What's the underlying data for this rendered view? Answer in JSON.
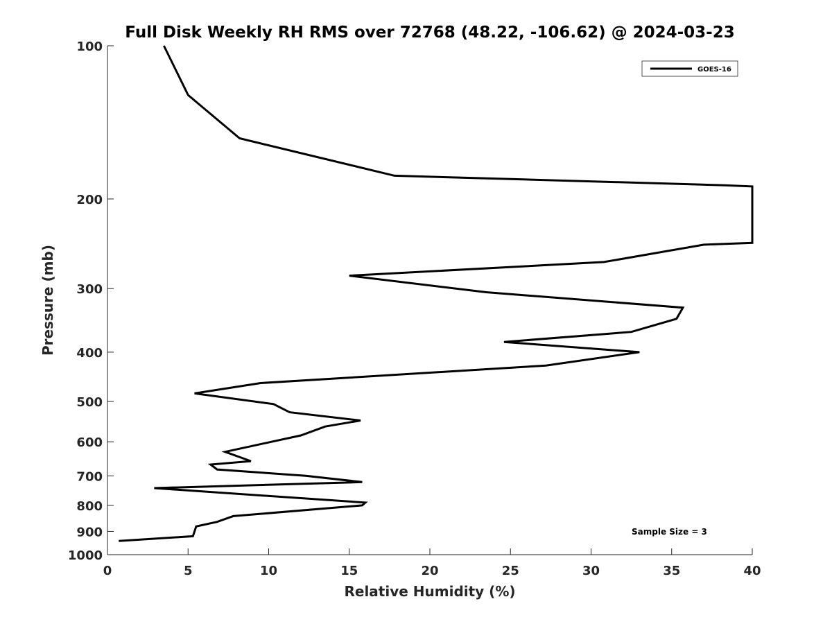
{
  "chart_data": {
    "type": "line",
    "title": "Full Disk Weekly RH RMS over 72768 (48.22, -106.62) @ 2024-03-23",
    "xlabel": "Relative Humidity (%)",
    "ylabel": "Pressure (mb)",
    "xlim": [
      0,
      40
    ],
    "ylim": [
      100,
      1000
    ],
    "y_scale": "log",
    "y_reversed": true,
    "xticks": [
      0,
      5,
      10,
      15,
      20,
      25,
      30,
      35,
      40
    ],
    "yticks": [
      100,
      200,
      300,
      400,
      500,
      600,
      700,
      800,
      900,
      1000
    ],
    "grid": false,
    "legend_position": "top-right",
    "series": [
      {
        "name": "GOES-16",
        "color": "#000000",
        "points": [
          [
            3.5,
            100
          ],
          [
            5.0,
            125
          ],
          [
            8.2,
            152
          ],
          [
            17.8,
            180
          ],
          [
            38.3,
            188
          ],
          [
            40.0,
            189
          ],
          [
            40.0,
            244
          ],
          [
            37.0,
            246
          ],
          [
            30.8,
            266
          ],
          [
            15.0,
            283
          ],
          [
            23.5,
            305
          ],
          [
            35.7,
            327
          ],
          [
            35.3,
            344
          ],
          [
            32.5,
            365
          ],
          [
            24.6,
            382
          ],
          [
            33.0,
            400
          ],
          [
            27.2,
            425
          ],
          [
            9.5,
            460
          ],
          [
            5.4,
            482
          ],
          [
            10.3,
            506
          ],
          [
            11.3,
            525
          ],
          [
            15.7,
            545
          ],
          [
            13.5,
            560
          ],
          [
            12.0,
            583
          ],
          [
            7.3,
            628
          ],
          [
            8.9,
            655
          ],
          [
            6.4,
            665
          ],
          [
            6.8,
            680
          ],
          [
            12.3,
            700
          ],
          [
            15.8,
            720
          ],
          [
            2.9,
            740
          ],
          [
            16.0,
            790
          ],
          [
            15.8,
            800
          ],
          [
            7.8,
            840
          ],
          [
            6.8,
            862
          ],
          [
            5.5,
            880
          ],
          [
            5.4,
            900
          ],
          [
            5.3,
            920
          ],
          [
            0.7,
            940
          ]
        ]
      }
    ],
    "annotations": [
      "Sample Size = 3"
    ]
  }
}
